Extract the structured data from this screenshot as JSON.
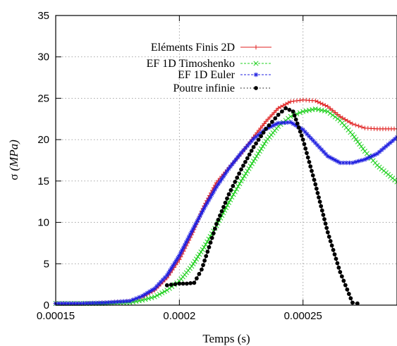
{
  "chart_data": {
    "type": "line",
    "xlabel": "Temps (s)",
    "ylabel_symbol": "σ",
    "ylabel_unit": "(MPa)",
    "xlim": [
      0.00015,
      0.000288
    ],
    "ylim": [
      0,
      35
    ],
    "x_ticks": [
      0.00015,
      0.0002,
      0.00025
    ],
    "x_tick_labels": [
      "0.00015",
      "0.0002",
      "0.00025"
    ],
    "y_ticks": [
      0,
      5,
      10,
      15,
      20,
      25,
      30,
      35
    ],
    "y_tick_labels": [
      "0",
      "5",
      "10",
      "15",
      "20",
      "25",
      "30",
      "35"
    ],
    "grid": true,
    "legend_position": "top-center",
    "series": [
      {
        "name": "Eléments Finis 2D",
        "color": "#e02020",
        "marker": "plus",
        "x": [
          0.00015,
          0.00016,
          0.00017,
          0.00018,
          0.000185,
          0.00019,
          0.000195,
          0.0002,
          0.000205,
          0.00021,
          0.000215,
          0.00022,
          0.000225,
          0.00023,
          0.000235,
          0.00024,
          0.000245,
          0.00025,
          0.000255,
          0.00026,
          0.000265,
          0.00027,
          0.000275,
          0.00028,
          0.000288
        ],
        "y": [
          0.2,
          0.2,
          0.3,
          0.5,
          1.0,
          1.8,
          3.3,
          5.5,
          8.5,
          12.0,
          14.8,
          16.6,
          18.3,
          20.3,
          22.2,
          23.8,
          24.6,
          24.8,
          24.7,
          24.0,
          22.8,
          21.9,
          21.4,
          21.3,
          21.3
        ]
      },
      {
        "name": "EF 1D Timoshenko",
        "color": "#20d020",
        "marker": "x",
        "x": [
          0.00015,
          0.00016,
          0.00017,
          0.00018,
          0.000185,
          0.00019,
          0.000195,
          0.0002,
          0.000205,
          0.00021,
          0.000215,
          0.00022,
          0.000225,
          0.00023,
          0.000235,
          0.00024,
          0.000245,
          0.00025,
          0.000255,
          0.00026,
          0.000265,
          0.00027,
          0.000275,
          0.00028,
          0.000288
        ],
        "y": [
          0.2,
          0.2,
          0.2,
          0.3,
          0.6,
          1.0,
          1.8,
          2.9,
          4.7,
          7.0,
          9.6,
          12.4,
          15.0,
          17.4,
          19.8,
          21.6,
          22.8,
          23.4,
          23.7,
          23.4,
          22.3,
          20.6,
          18.6,
          16.9,
          14.9
        ]
      },
      {
        "name": "EF 1D Euler",
        "color": "#2020e0",
        "marker": "star",
        "x": [
          0.00015,
          0.00016,
          0.00017,
          0.00018,
          0.000185,
          0.00019,
          0.000195,
          0.0002,
          0.000205,
          0.00021,
          0.000215,
          0.00022,
          0.000225,
          0.00023,
          0.000235,
          0.00024,
          0.000245,
          0.00025,
          0.000255,
          0.00026,
          0.000265,
          0.00027,
          0.000275,
          0.00028,
          0.000288
        ],
        "y": [
          0.2,
          0.2,
          0.3,
          0.5,
          1.1,
          2.0,
          3.6,
          6.0,
          8.9,
          11.7,
          14.3,
          16.5,
          18.4,
          20.1,
          21.3,
          22.0,
          22.1,
          21.2,
          19.6,
          18.0,
          17.2,
          17.2,
          17.6,
          18.3,
          20.3
        ]
      },
      {
        "name": "Poutre infinie",
        "color": "#000000",
        "marker": "dot",
        "x": [
          0.000195,
          0.0002,
          0.000203,
          0.000206,
          0.000209,
          0.000212,
          0.000215,
          0.00022,
          0.000225,
          0.00023,
          0.000235,
          0.00024,
          0.000243,
          0.000246,
          0.00025,
          0.000255,
          0.00026,
          0.000265,
          0.00027,
          0.000272
        ],
        "y": [
          2.4,
          2.6,
          2.6,
          2.7,
          4.3,
          7.0,
          9.8,
          13.4,
          16.4,
          19.1,
          21.3,
          23.0,
          23.8,
          23.4,
          20.0,
          14.6,
          8.8,
          4.0,
          0.3,
          0.2
        ]
      }
    ]
  }
}
